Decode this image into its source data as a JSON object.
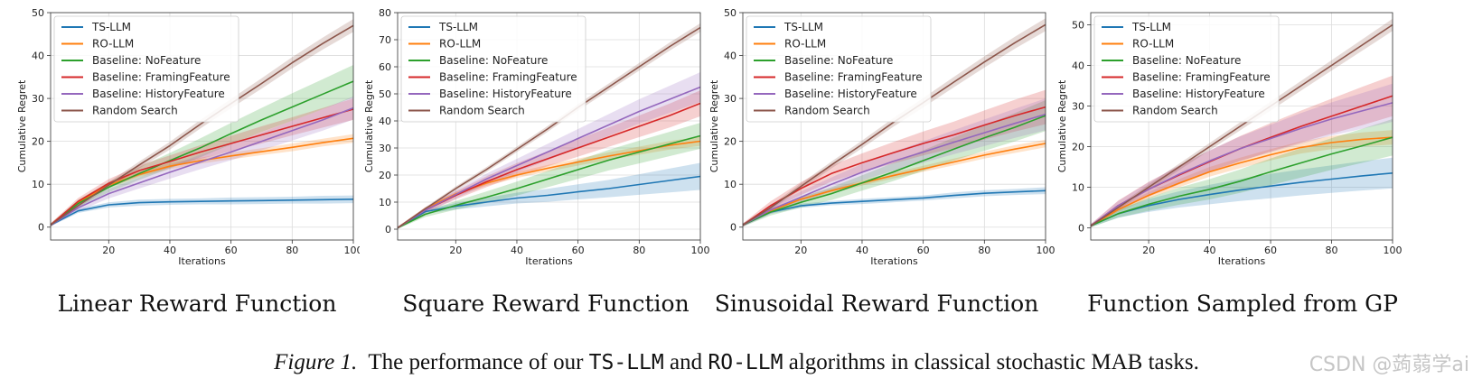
{
  "series_names": [
    "TS-LLM",
    "RO-LLM",
    "Baseline: NoFeature",
    "Baseline: FramingFeature",
    "Baseline: HistoryFeature",
    "Random Search"
  ],
  "series_colors": [
    "#1f77b4",
    "#ff7f0e",
    "#2ca02c",
    "#d62728",
    "#9467bd",
    "#8c564b"
  ],
  "chart_data": [
    {
      "type": "line",
      "title": "Linear Reward Function",
      "xlabel": "Iterations",
      "ylabel": "Cumulative Regret",
      "xlim": [
        1,
        100
      ],
      "ylim": [
        -3,
        50
      ],
      "xticks": [
        20,
        40,
        60,
        80,
        100
      ],
      "yticks": [
        0,
        10,
        20,
        30,
        40,
        50
      ],
      "grid": true,
      "legend": "top-left",
      "x": [
        1,
        10,
        20,
        30,
        40,
        50,
        60,
        70,
        80,
        90,
        100
      ],
      "series": [
        {
          "name": "TS-LLM",
          "values": [
            0.5,
            3.8,
            5.2,
            5.7,
            5.9,
            6.0,
            6.1,
            6.2,
            6.3,
            6.4,
            6.5
          ],
          "band": [
            0.3,
            0.5,
            0.6,
            0.7,
            0.7,
            0.7,
            0.8,
            0.8,
            0.8,
            0.9,
            0.9
          ]
        },
        {
          "name": "RO-LLM",
          "values": [
            0.5,
            5.8,
            9.8,
            12.3,
            14.2,
            15.5,
            16.6,
            17.6,
            18.6,
            19.7,
            20.7
          ],
          "band": [
            0.3,
            0.5,
            0.6,
            0.6,
            0.7,
            0.7,
            0.8,
            0.8,
            0.9,
            0.9,
            1.0
          ]
        },
        {
          "name": "Baseline: NoFeature",
          "values": [
            0.5,
            5.5,
            9.3,
            12.5,
            15.5,
            18.5,
            21.8,
            25.0,
            28.0,
            31.0,
            34.0
          ],
          "band": [
            0.4,
            0.8,
            1.2,
            1.5,
            1.8,
            2.2,
            2.5,
            2.8,
            3.2,
            3.5,
            3.8
          ]
        },
        {
          "name": "Baseline: FramingFeature",
          "values": [
            0.5,
            6.0,
            10.2,
            13.2,
            15.3,
            17.5,
            19.5,
            21.5,
            23.5,
            25.5,
            27.5
          ],
          "band": [
            0.4,
            0.8,
            1.0,
            1.2,
            1.4,
            1.6,
            1.8,
            2.0,
            2.1,
            2.3,
            2.5
          ]
        },
        {
          "name": "Baseline: HistoryFeature",
          "values": [
            0.5,
            4.5,
            7.8,
            10.3,
            12.8,
            15.2,
            17.5,
            20.0,
            22.5,
            25.0,
            27.8
          ],
          "band": [
            0.4,
            0.8,
            1.1,
            1.3,
            1.5,
            1.7,
            1.9,
            2.1,
            2.3,
            2.5,
            2.7
          ]
        },
        {
          "name": "Random Search",
          "values": [
            0.5,
            5.0,
            9.8,
            14.5,
            19.0,
            24.0,
            28.8,
            33.5,
            38.3,
            42.8,
            47.0
          ],
          "band": [
            0.3,
            0.5,
            0.7,
            0.8,
            0.9,
            1.0,
            1.1,
            1.2,
            1.3,
            1.4,
            1.5
          ]
        }
      ]
    },
    {
      "type": "line",
      "title": "Square Reward Function",
      "xlabel": "Iterations",
      "ylabel": "Cumulative Regret",
      "xlim": [
        1,
        100
      ],
      "ylim": [
        -4,
        80
      ],
      "xticks": [
        20,
        40,
        60,
        80,
        100
      ],
      "yticks": [
        0,
        10,
        20,
        30,
        40,
        50,
        60,
        70,
        80
      ],
      "grid": true,
      "legend": "top-left",
      "x": [
        1,
        10,
        20,
        30,
        40,
        50,
        60,
        70,
        80,
        90,
        100
      ],
      "series": [
        {
          "name": "TS-LLM",
          "values": [
            0.5,
            6.5,
            8.5,
            10.0,
            11.5,
            12.5,
            13.8,
            15.0,
            16.5,
            18.0,
            19.5
          ],
          "band": [
            0.3,
            0.8,
            1.2,
            1.6,
            2.0,
            2.4,
            2.8,
            3.2,
            3.8,
            4.4,
            5.0
          ]
        },
        {
          "name": "RO-LLM",
          "values": [
            0.5,
            7.5,
            13.0,
            17.0,
            20.0,
            22.5,
            24.8,
            27.0,
            29.0,
            31.0,
            32.5
          ],
          "band": [
            0.3,
            0.6,
            0.8,
            1.0,
            1.1,
            1.2,
            1.3,
            1.4,
            1.5,
            1.6,
            1.7
          ]
        },
        {
          "name": "Baseline: NoFeature",
          "values": [
            0.5,
            5.5,
            8.8,
            11.8,
            15.0,
            18.5,
            22.0,
            25.5,
            28.5,
            31.5,
            34.5
          ],
          "band": [
            0.4,
            1.0,
            1.6,
            2.1,
            2.6,
            3.0,
            3.4,
            3.8,
            4.2,
            4.5,
            4.8
          ]
        },
        {
          "name": "Baseline: FramingFeature",
          "values": [
            0.5,
            7.0,
            12.5,
            17.5,
            22.0,
            26.0,
            30.0,
            34.0,
            38.0,
            42.0,
            46.5
          ],
          "band": [
            0.4,
            1.0,
            1.5,
            2.0,
            2.4,
            2.8,
            3.2,
            3.6,
            4.0,
            4.4,
            4.8
          ]
        },
        {
          "name": "Baseline: HistoryFeature",
          "values": [
            0.5,
            7.0,
            12.8,
            18.5,
            23.5,
            28.5,
            33.5,
            38.5,
            43.5,
            48.0,
            52.5
          ],
          "band": [
            0.4,
            1.0,
            1.5,
            2.0,
            2.5,
            3.0,
            3.5,
            4.0,
            4.5,
            5.0,
            5.5
          ]
        },
        {
          "name": "Random Search",
          "values": [
            0.5,
            7.5,
            15.0,
            22.0,
            29.5,
            37.0,
            45.0,
            52.5,
            60.0,
            67.5,
            74.5
          ],
          "band": [
            0.3,
            0.6,
            0.8,
            0.9,
            1.0,
            1.1,
            1.2,
            1.3,
            1.4,
            1.5,
            1.6
          ]
        }
      ]
    },
    {
      "type": "line",
      "title": "Sinusoidal Reward Function",
      "xlabel": "Iterations",
      "ylabel": "Cumulative Regret",
      "xlim": [
        1,
        100
      ],
      "ylim": [
        -3,
        50
      ],
      "xticks": [
        20,
        40,
        60,
        80,
        100
      ],
      "yticks": [
        0,
        10,
        20,
        30,
        40,
        50
      ],
      "grid": true,
      "legend": "top-left",
      "x": [
        1,
        10,
        20,
        30,
        40,
        50,
        60,
        70,
        80,
        90,
        100
      ],
      "series": [
        {
          "name": "TS-LLM",
          "values": [
            0.5,
            3.5,
            5.0,
            5.6,
            6.0,
            6.4,
            6.8,
            7.4,
            7.9,
            8.2,
            8.5
          ],
          "band": [
            0.3,
            0.4,
            0.5,
            0.5,
            0.6,
            0.6,
            0.6,
            0.7,
            0.7,
            0.7,
            0.8
          ]
        },
        {
          "name": "RO-LLM",
          "values": [
            0.5,
            3.8,
            6.5,
            8.5,
            10.3,
            12.0,
            13.6,
            15.2,
            16.8,
            18.2,
            19.5
          ],
          "band": [
            0.3,
            0.4,
            0.5,
            0.6,
            0.6,
            0.7,
            0.7,
            0.8,
            0.8,
            0.9,
            0.9
          ]
        },
        {
          "name": "Baseline: NoFeature",
          "values": [
            0.5,
            3.5,
            5.8,
            7.8,
            10.3,
            12.8,
            15.5,
            18.2,
            20.8,
            23.3,
            26.0
          ],
          "band": [
            0.4,
            0.8,
            1.2,
            1.5,
            1.8,
            2.1,
            2.4,
            2.7,
            3.0,
            3.3,
            3.6
          ]
        },
        {
          "name": "Baseline: FramingFeature",
          "values": [
            0.5,
            5.0,
            9.0,
            12.5,
            15.0,
            17.3,
            19.5,
            21.5,
            23.8,
            26.0,
            28.0
          ],
          "band": [
            0.4,
            1.0,
            1.5,
            1.9,
            2.2,
            2.5,
            2.8,
            3.1,
            3.4,
            3.7,
            4.0
          ]
        },
        {
          "name": "Baseline: HistoryFeature",
          "values": [
            0.5,
            4.0,
            7.0,
            10.0,
            12.8,
            15.3,
            17.5,
            19.8,
            22.0,
            24.2,
            26.3
          ],
          "band": [
            0.4,
            0.9,
            1.3,
            1.6,
            1.9,
            2.2,
            2.5,
            2.8,
            3.1,
            3.4,
            3.7
          ]
        },
        {
          "name": "Random Search",
          "values": [
            0.5,
            4.5,
            9.5,
            14.5,
            19.3,
            24.3,
            29.0,
            33.8,
            38.5,
            43.0,
            47.2
          ],
          "band": [
            0.3,
            0.5,
            0.7,
            0.8,
            0.9,
            1.0,
            1.1,
            1.2,
            1.3,
            1.4,
            1.5
          ]
        }
      ]
    },
    {
      "type": "line",
      "title": "Function Sampled from GP",
      "xlabel": "Iterations",
      "ylabel": "Cumulative Regret",
      "xlim": [
        1,
        100
      ],
      "ylim": [
        -3,
        53
      ],
      "xticks": [
        20,
        40,
        60,
        80,
        100
      ],
      "yticks": [
        0,
        10,
        20,
        30,
        40,
        50
      ],
      "grid": true,
      "legend": "top-left",
      "x": [
        1,
        10,
        20,
        30,
        40,
        50,
        60,
        70,
        80,
        90,
        100
      ],
      "series": [
        {
          "name": "TS-LLM",
          "values": [
            0.5,
            3.5,
            5.5,
            7.0,
            8.2,
            9.3,
            10.3,
            11.2,
            12.0,
            12.8,
            13.5
          ],
          "band": [
            0.3,
            1.0,
            1.6,
            2.0,
            2.4,
            2.7,
            3.0,
            3.2,
            3.4,
            3.6,
            3.8
          ]
        },
        {
          "name": "RO-LLM",
          "values": [
            0.5,
            4.5,
            8.0,
            11.0,
            13.8,
            16.0,
            18.0,
            19.8,
            21.0,
            21.8,
            22.3
          ],
          "band": [
            0.3,
            0.6,
            0.8,
            1.0,
            1.2,
            1.3,
            1.4,
            1.5,
            1.6,
            1.7,
            1.8
          ]
        },
        {
          "name": "Baseline: NoFeature",
          "values": [
            0.5,
            3.5,
            5.8,
            7.8,
            9.5,
            11.5,
            13.8,
            16.0,
            18.2,
            20.2,
            22.3
          ],
          "band": [
            0.4,
            1.0,
            1.6,
            2.1,
            2.5,
            2.9,
            3.3,
            3.6,
            3.9,
            4.2,
            4.5
          ]
        },
        {
          "name": "Baseline: FramingFeature",
          "values": [
            0.5,
            5.5,
            9.5,
            13.0,
            16.3,
            19.5,
            22.3,
            25.0,
            27.5,
            30.0,
            32.5
          ],
          "band": [
            0.4,
            1.2,
            1.8,
            2.3,
            2.7,
            3.1,
            3.5,
            3.9,
            4.3,
            4.7,
            5.0
          ]
        },
        {
          "name": "Baseline: HistoryFeature",
          "values": [
            0.5,
            5.5,
            9.5,
            13.2,
            16.5,
            19.5,
            22.0,
            24.5,
            26.8,
            28.8,
            30.8
          ],
          "band": [
            0.4,
            1.1,
            1.7,
            2.2,
            2.6,
            3.0,
            3.4,
            3.8,
            4.1,
            4.4,
            4.7
          ]
        },
        {
          "name": "Random Search",
          "values": [
            0.5,
            5.0,
            10.0,
            15.0,
            20.0,
            25.0,
            30.0,
            35.0,
            40.0,
            45.0,
            50.0
          ],
          "band": [
            0.3,
            0.5,
            0.7,
            0.8,
            0.9,
            1.0,
            1.1,
            1.2,
            1.3,
            1.4,
            1.5
          ]
        }
      ]
    }
  ],
  "caption": {
    "label": "Figure 1.",
    "text_1": "The performance of our",
    "code_1": "TS-LLM",
    "text_2": "and",
    "code_2": "RO-LLM",
    "text_3": "algorithms in classical stochastic MAB tasks."
  },
  "watermark": "CSDN @蒟蒻学ai"
}
